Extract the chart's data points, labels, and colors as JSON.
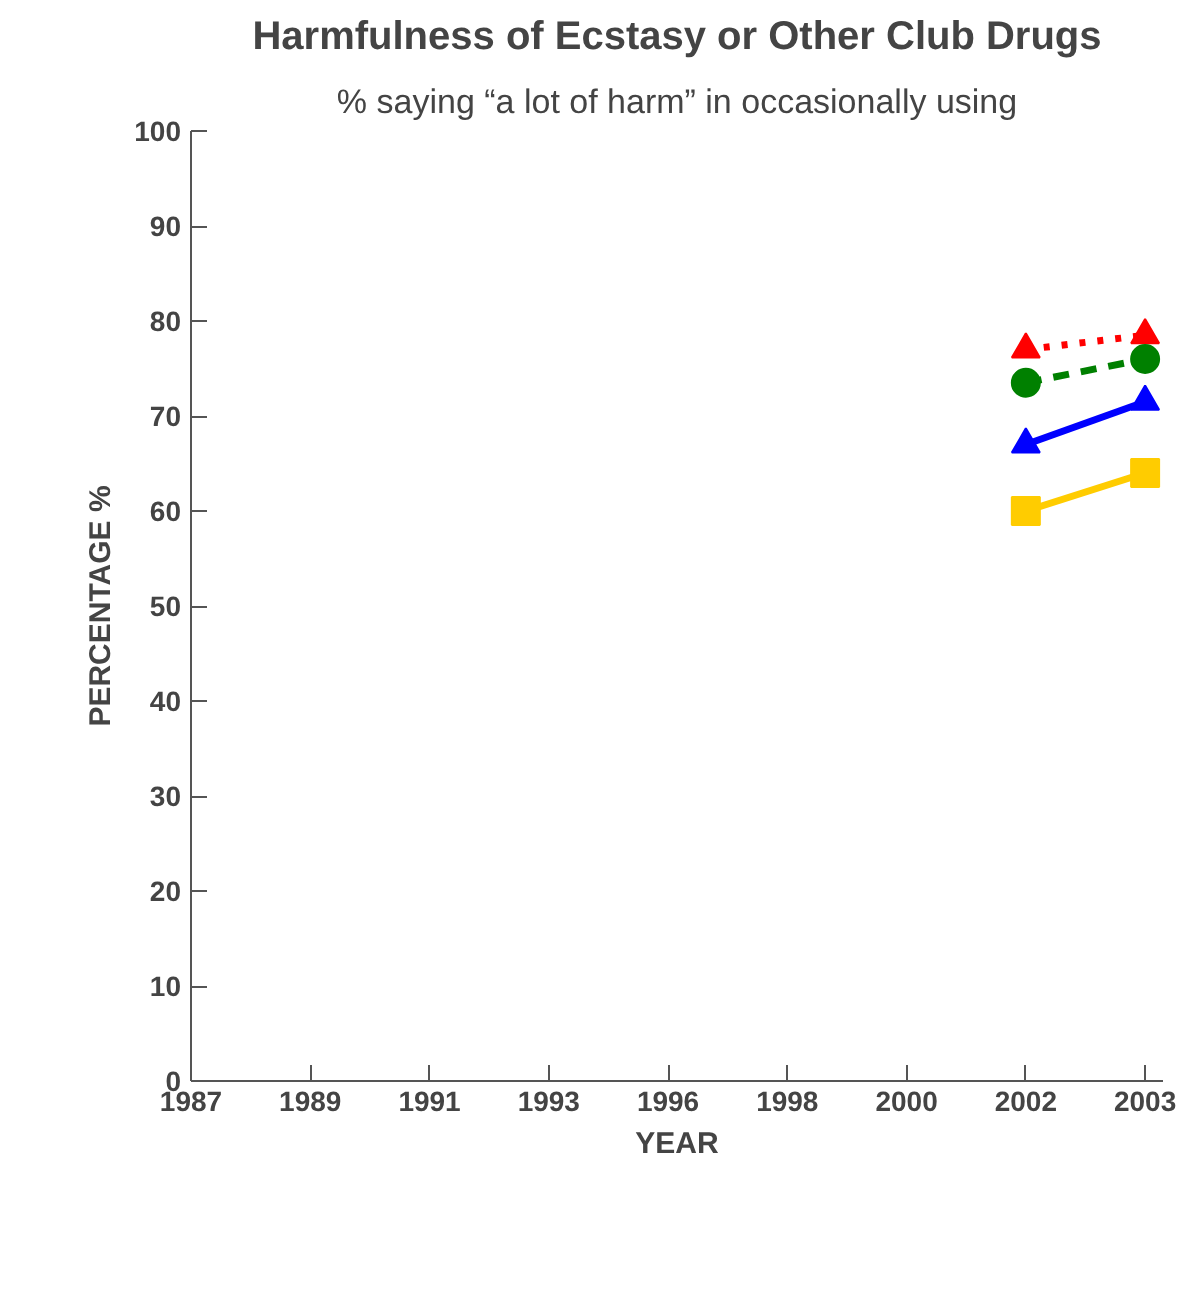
{
  "chart_data": {
    "type": "line",
    "title": "Harmfulness of Ecstasy or Other Club Drugs",
    "subtitle": "% saying “a lot of harm” in occasionally using",
    "xlabel": "YEAR",
    "ylabel": "PERCENTAGE %",
    "categories": [
      "1987",
      "1989",
      "1991",
      "1993",
      "1996",
      "1998",
      "2000",
      "2002",
      "2003"
    ],
    "ylim": [
      0,
      100
    ],
    "yticks": [
      0,
      10,
      20,
      30,
      40,
      50,
      60,
      70,
      80,
      90,
      100
    ],
    "grid": false,
    "series": [
      {
        "color": "#ff0000",
        "marker": "triangle",
        "line_style": "dotted",
        "values": [
          null,
          null,
          null,
          null,
          null,
          null,
          null,
          77,
          78.5
        ]
      },
      {
        "color": "#008000",
        "marker": "circle",
        "line_style": "dashed",
        "values": [
          null,
          null,
          null,
          null,
          null,
          null,
          null,
          73.5,
          76
        ]
      },
      {
        "color": "#0000ff",
        "marker": "triangle",
        "line_style": "solid",
        "values": [
          null,
          null,
          null,
          null,
          null,
          null,
          null,
          67,
          71.5
        ]
      },
      {
        "color": "#ffcc00",
        "marker": "square",
        "line_style": "solid",
        "values": [
          null,
          null,
          null,
          null,
          null,
          null,
          null,
          60,
          64
        ]
      }
    ]
  }
}
